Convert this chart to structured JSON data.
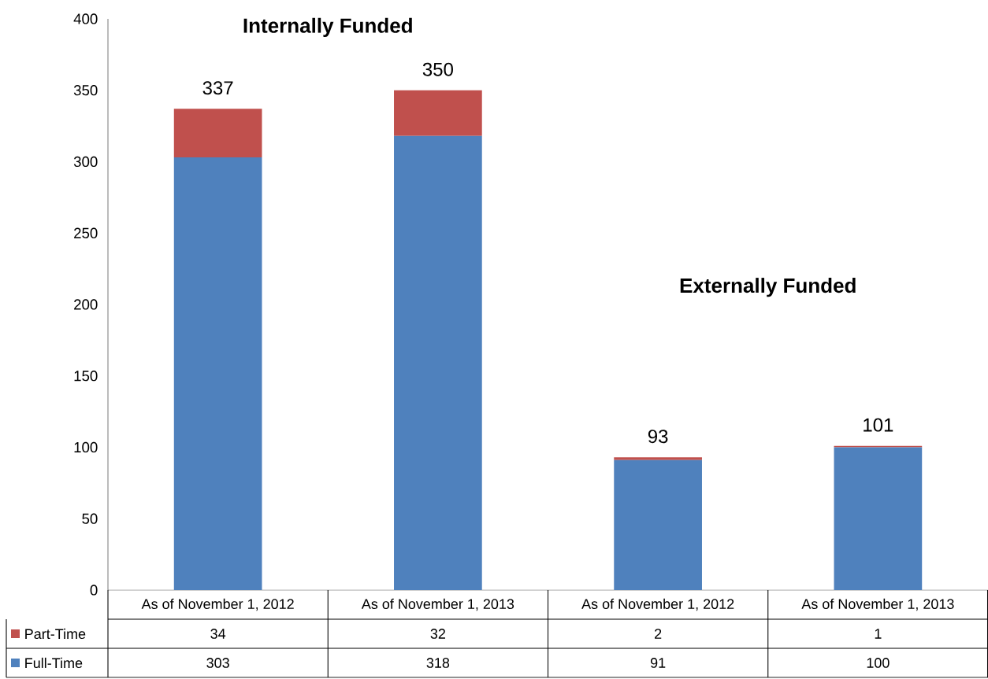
{
  "chart_data": {
    "type": "bar",
    "stacked": true,
    "categories": [
      "As of November 1, 2012",
      "As of November 1, 2013",
      "As of November 1, 2012",
      "As of November 1, 2013"
    ],
    "series": [
      {
        "name": "Full-Time",
        "color": "#4f81bd",
        "values": [
          303,
          318,
          91,
          100
        ]
      },
      {
        "name": "Part-Time",
        "color": "#c0504d",
        "values": [
          34,
          32,
          2,
          1
        ]
      }
    ],
    "totals": [
      "337",
      "350",
      "93",
      "101"
    ],
    "annotations": [
      "Internally Funded",
      "Externally Funded"
    ],
    "ylim": [
      0,
      400
    ],
    "yticks": [
      0,
      50,
      100,
      150,
      200,
      250,
      300,
      350,
      400
    ],
    "data_labels": true,
    "legend": "bottom"
  }
}
